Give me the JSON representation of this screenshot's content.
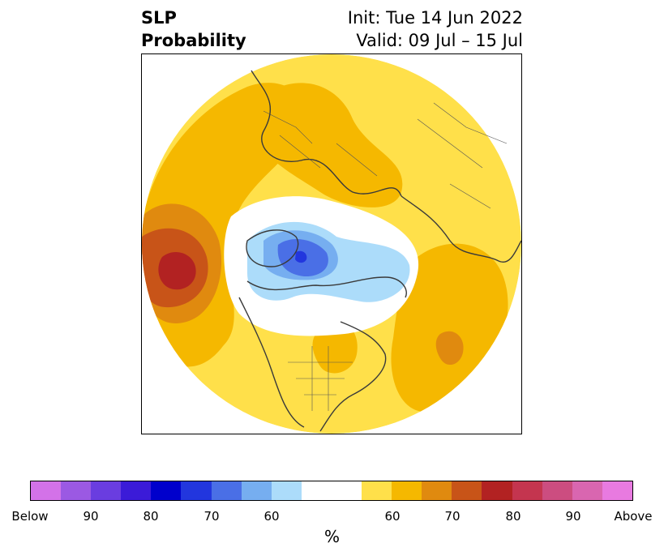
{
  "title": {
    "left_line1": "SLP",
    "left_line2": "Probability",
    "right_line1": "Init: Tue 14 Jun 2022",
    "right_line2": "Valid: 09 Jul – 15 Jul"
  },
  "colorbar": {
    "unit": "%",
    "tick_labels": [
      "Below",
      "90",
      "80",
      "70",
      "60",
      "60",
      "70",
      "80",
      "90",
      "Above"
    ],
    "colors": [
      "#d372e8",
      "#9b59e3",
      "#6a3de0",
      "#3b1bd8",
      "#0000cc",
      "#2236de",
      "#4a6fe6",
      "#76aef0",
      "#acdcfa",
      "#ffffff",
      "#ffe04a",
      "#f5b800",
      "#e08a0f",
      "#c85418",
      "#b22222",
      "#c4354f",
      "#cc4d80",
      "#d966b0",
      "#e87ae0"
    ]
  },
  "map": {
    "projection": "north-polar-stereographic",
    "colors": {
      "light_yellow": "#ffe04a",
      "yellow_orange": "#f5b800",
      "orange": "#e08a0f",
      "dark_orange": "#c85418",
      "red": "#b22222",
      "light_blue": "#acdcfa",
      "mid_blue": "#76aef0",
      "blue": "#4a6fe6",
      "dark_blue": "#2236de",
      "coast": "#3a3a3a"
    }
  }
}
